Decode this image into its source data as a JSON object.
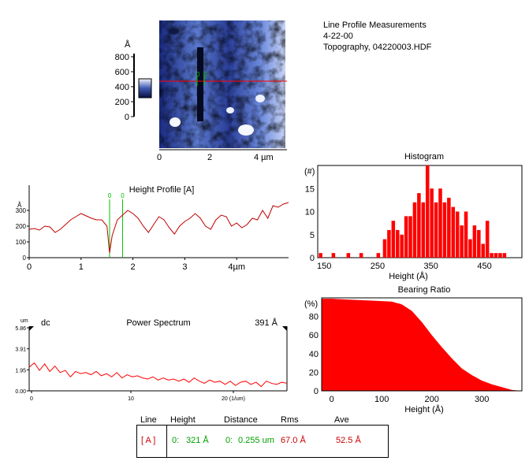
{
  "header": {
    "title": "Line Profile Measurements",
    "date": "4-22-00",
    "file": "Topography,  04220003.HDF"
  },
  "scale_bar": {
    "unit": "Å",
    "ticks": [
      "800",
      "600",
      "400",
      "200",
      "0"
    ],
    "x_ticks": [
      "0",
      "2",
      "4 µm"
    ]
  },
  "profile_cursor_labels": [
    "0",
    "0"
  ],
  "colors": {
    "data_red": "#ff0000",
    "dark_red": "#c00000",
    "cursor_green": "#00c000",
    "image_dark": "#10185a",
    "image_light": "#f2f6ff"
  },
  "chart_data": [
    {
      "type": "line",
      "title": "Height Profile [A]",
      "ylabel": "Å",
      "xlim": [
        0,
        5.0
      ],
      "ylim": [
        0,
        360
      ],
      "x_ticks": [
        0,
        1,
        2,
        3,
        4
      ],
      "x_tick_labels": [
        "0",
        "1",
        "2",
        "3",
        "4µm"
      ],
      "y_ticks": [
        0,
        100,
        200,
        300
      ],
      "cursors_x": [
        1.55,
        1.8
      ],
      "cursor_labels": [
        "0",
        "0"
      ],
      "series": [
        {
          "x": [
            0,
            0.1,
            0.2,
            0.3,
            0.4,
            0.5,
            0.6,
            0.7,
            0.8,
            0.9,
            1.0,
            1.1,
            1.2,
            1.3,
            1.4,
            1.5,
            1.55,
            1.6,
            1.7,
            1.8,
            1.9,
            2.0,
            2.1,
            2.2,
            2.3,
            2.4,
            2.5,
            2.6,
            2.7,
            2.8,
            2.9,
            3.0,
            3.1,
            3.2,
            3.3,
            3.4,
            3.5,
            3.6,
            3.7,
            3.8,
            3.9,
            4.0,
            4.1,
            4.2,
            4.3,
            4.4,
            4.5,
            4.6,
            4.7,
            4.8,
            4.9,
            5.0
          ],
          "y": [
            180,
            185,
            175,
            200,
            195,
            160,
            180,
            210,
            240,
            260,
            280,
            265,
            250,
            240,
            240,
            200,
            30,
            140,
            240,
            270,
            300,
            280,
            250,
            200,
            160,
            210,
            260,
            240,
            190,
            150,
            200,
            230,
            250,
            280,
            250,
            200,
            180,
            240,
            270,
            260,
            200,
            220,
            190,
            210,
            250,
            240,
            300,
            250,
            330,
            320,
            340,
            350
          ]
        }
      ]
    },
    {
      "type": "bar",
      "title": "Histogram",
      "ylabel": "(#)",
      "xlabel": "Height (Å)",
      "xlim": [
        138,
        520
      ],
      "ylim": [
        0,
        20
      ],
      "x_ticks": [
        150,
        250,
        350,
        450
      ],
      "y_ticks": [
        0,
        5,
        10,
        15
      ],
      "bin_width": 6.7,
      "bins": [
        [
          140,
          1
        ],
        [
          164,
          1
        ],
        [
          192,
          1
        ],
        [
          216,
          1
        ],
        [
          248,
          1
        ],
        [
          260,
          4
        ],
        [
          268,
          6
        ],
        [
          276,
          8
        ],
        [
          284,
          6
        ],
        [
          292,
          5
        ],
        [
          300,
          9
        ],
        [
          308,
          9
        ],
        [
          316,
          12
        ],
        [
          324,
          14
        ],
        [
          332,
          12
        ],
        [
          340,
          20
        ],
        [
          348,
          15
        ],
        [
          356,
          12
        ],
        [
          364,
          15
        ],
        [
          372,
          12
        ],
        [
          380,
          13
        ],
        [
          388,
          11
        ],
        [
          396,
          10
        ],
        [
          404,
          7
        ],
        [
          412,
          10
        ],
        [
          420,
          4
        ],
        [
          428,
          7
        ],
        [
          436,
          6
        ],
        [
          444,
          3
        ],
        [
          452,
          8
        ],
        [
          460,
          1
        ],
        [
          468,
          1
        ],
        [
          476,
          1
        ],
        [
          484,
          1
        ]
      ]
    },
    {
      "type": "area",
      "title": "Bearing Ratio",
      "ylabel": "(%)",
      "xlabel": "Height (Å)",
      "xlim": [
        -20,
        380
      ],
      "ylim": [
        0,
        100
      ],
      "x_ticks": [
        0,
        100,
        200,
        300
      ],
      "y_ticks": [
        0,
        20,
        40,
        60,
        80
      ],
      "series": [
        {
          "x": [
            -20,
            0,
            40,
            80,
            120,
            140,
            160,
            180,
            200,
            220,
            240,
            260,
            280,
            300,
            320,
            340,
            360,
            380
          ],
          "y": [
            99,
            99,
            98,
            97,
            96,
            93,
            86,
            74,
            60,
            47,
            35,
            24,
            17,
            11,
            7,
            4,
            1,
            0
          ]
        }
      ]
    },
    {
      "type": "line",
      "title": "Power Spectrum",
      "ylabel": "um",
      "xlabel": "(1/um)",
      "left_label": "dc",
      "right_value": "391 Å",
      "x_tick_labels": [
        "0",
        "10",
        "20 (1/um)"
      ],
      "y_tick_labels": [
        "5.86",
        "3.91",
        "1.95",
        "0.00"
      ],
      "xlim": [
        0,
        25
      ],
      "ylim": [
        0,
        5.86
      ],
      "series": [
        {
          "x": [
            0,
            0.5,
            1,
            1.5,
            2,
            2.5,
            3,
            3.5,
            4,
            4.5,
            5,
            5.5,
            6,
            6.5,
            7,
            7.5,
            8,
            8.5,
            9,
            9.5,
            10,
            10.5,
            11,
            11.5,
            12,
            12.5,
            13,
            13.5,
            14,
            14.5,
            15,
            15.5,
            16,
            16.5,
            17,
            17.5,
            18,
            18.5,
            19,
            19.5,
            20,
            20.5,
            21,
            21.5,
            22,
            22.5,
            23,
            23.5,
            24,
            24.5,
            25
          ],
          "y": [
            2.2,
            2.6,
            1.9,
            2.5,
            1.8,
            2.3,
            1.7,
            1.9,
            1.3,
            1.8,
            1.6,
            1.7,
            1.5,
            1.8,
            1.4,
            1.6,
            1.3,
            1.7,
            1.2,
            1.5,
            1.3,
            1.4,
            1.2,
            1.1,
            1.3,
            1.0,
            1.2,
            1.0,
            1.1,
            0.9,
            1.1,
            0.8,
            1.2,
            0.9,
            0.7,
            1.0,
            0.8,
            0.9,
            0.6,
            0.9,
            0.5,
            0.8,
            0.9,
            0.6,
            0.8,
            0.4,
            0.9,
            0.7,
            0.6,
            0.8,
            0.7
          ]
        }
      ]
    }
  ],
  "table": {
    "headers": [
      "Line",
      "Height",
      "Distance",
      "Rms",
      "Ave"
    ],
    "row": {
      "line": "[ A ]",
      "cursor_a": "0:",
      "height": "321 Å",
      "cursor_b": "0:",
      "distance": "0.255 um",
      "rms": "67.0 Å",
      "ave": "52.5 Å"
    }
  }
}
